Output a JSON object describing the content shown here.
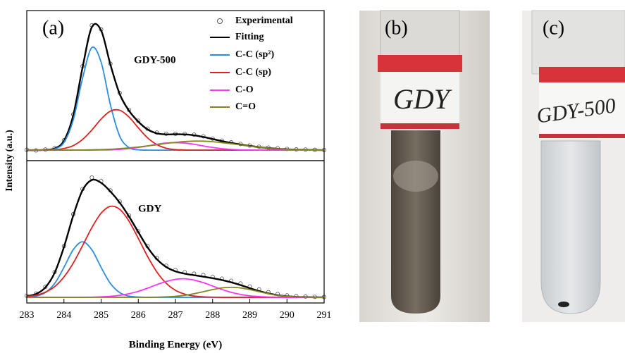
{
  "chart_data": [
    {
      "type": "line",
      "title": "(a)",
      "annotation": "GDY-500",
      "ylabel": "Intensity (a.u.)",
      "legend": "upper right",
      "x": [
        283,
        283.25,
        283.5,
        283.75,
        284,
        284.25,
        284.5,
        284.75,
        285,
        285.25,
        285.5,
        285.75,
        286,
        286.25,
        286.5,
        286.75,
        287,
        287.25,
        287.5,
        287.75,
        288,
        288.25,
        288.5,
        288.75,
        289,
        289.25,
        289.5,
        289.75,
        290,
        290.25,
        290.5,
        290.75,
        291
      ],
      "xlim": [
        283,
        291
      ],
      "ylim": [
        0,
        100
      ],
      "series": [
        {
          "name": "Experimental",
          "style": "markers",
          "color": "#555555",
          "values": [
            7.3,
            6.8,
            7.4,
            8.4,
            13.6,
            30.8,
            62.9,
            90.2,
            87.5,
            64.6,
            45.1,
            33.8,
            26.6,
            21.3,
            18.7,
            17.9,
            17.9,
            17.8,
            17.3,
            16.2,
            14.7,
            13.3,
            12.2,
            11.1,
            10.1,
            9.3,
            8.7,
            8.2,
            7.8,
            7.5,
            7.4,
            7.2,
            7.1
          ]
        },
        {
          "name": "Fitting",
          "style": "line",
          "color": "#000000",
          "values": [
            7,
            7,
            7.2,
            8.1,
            13.2,
            30.2,
            62,
            88.9,
            86.8,
            64,
            44.4,
            33.3,
            26,
            20.8,
            18.2,
            17.5,
            17.6,
            17.5,
            16.9,
            15.8,
            14.4,
            13,
            11.8,
            10.7,
            9.8,
            9,
            8.4,
            7.9,
            7.6,
            7.3,
            7.2,
            7.1,
            7
          ]
        },
        {
          "name": "C-C (sp²)",
          "style": "line",
          "color": "#2b8ce0",
          "values": [
            7,
            7,
            7.1,
            7.8,
            12.1,
            27.1,
            54.8,
            75.3,
            65.6,
            37.2,
            16.3,
            8.7,
            7.2,
            7,
            7,
            7,
            7,
            7,
            7,
            7,
            7,
            7,
            7,
            7,
            7,
            7,
            7,
            7,
            7,
            7,
            7,
            7,
            7
          ]
        },
        {
          "name": "C-C (sp)",
          "style": "line",
          "color": "#e02020",
          "values": [
            7,
            7,
            7.1,
            7.3,
            8.1,
            10,
            14.1,
            20.4,
            27.7,
            33,
            33.6,
            29.1,
            21.9,
            15.2,
            10.7,
            8.3,
            7.4,
            7.1,
            7,
            7,
            7,
            7,
            7,
            7,
            7,
            7,
            7,
            7,
            7,
            7,
            7,
            7,
            7
          ]
        },
        {
          "name": "C-O",
          "style": "line",
          "color": "#ff33ff",
          "values": [
            7,
            7,
            7,
            7,
            7,
            7,
            7,
            7,
            7.1,
            7.2,
            7.5,
            8,
            8.8,
            9.8,
            10.9,
            11.7,
            12,
            11.7,
            10.9,
            9.8,
            8.8,
            8,
            7.5,
            7.2,
            7.1,
            7,
            7,
            7,
            7,
            7,
            7,
            7,
            7
          ]
        },
        {
          "name": "C=O",
          "style": "line",
          "color": "#858520",
          "values": [
            7,
            7,
            7,
            7,
            7,
            7.1,
            7.1,
            7.2,
            7.4,
            7.6,
            8,
            8.5,
            9.1,
            9.8,
            10.6,
            11.5,
            12.2,
            12.7,
            13,
            13,
            12.6,
            12,
            11.3,
            10.5,
            9.7,
            9,
            8.4,
            7.9,
            7.6,
            7.3,
            7.2,
            7.1,
            7
          ]
        }
      ]
    },
    {
      "type": "line",
      "annotation": "GDY",
      "xlabel": "Binding Energy (eV)",
      "x": [
        283,
        283.25,
        283.5,
        283.75,
        284,
        284.25,
        284.5,
        284.75,
        285,
        285.25,
        285.5,
        285.75,
        286,
        286.25,
        286.5,
        286.75,
        287,
        287.25,
        287.5,
        287.75,
        288,
        288.25,
        288.5,
        288.75,
        289,
        289.25,
        289.5,
        289.75,
        290,
        290.25,
        290.5,
        290.75,
        291
      ],
      "xlim": [
        283,
        291
      ],
      "xticks": [
        283,
        284,
        285,
        286,
        287,
        288,
        289,
        290,
        291
      ],
      "ylim": [
        0,
        100
      ],
      "series": [
        {
          "style": "markers",
          "color": "#555555",
          "values": [
            5.1,
            6.6,
            11.3,
            21.8,
            39.9,
            62.3,
            80.1,
            88.1,
            85.6,
            79.1,
            71.2,
            61.4,
            50.4,
            39.9,
            31.6,
            26.2,
            23.1,
            21.6,
            20.6,
            19.6,
            18.4,
            17.1,
            15.6,
            13.7,
            11.6,
            9.5,
            7.6,
            6.3,
            5.3,
            4.8,
            4.5,
            4.3,
            4.2
          ]
        },
        {
          "style": "line",
          "color": "#000000",
          "values": [
            4.8,
            6.3,
            10.9,
            21.2,
            39.3,
            61.4,
            79.2,
            86.4,
            84.4,
            78.3,
            70.5,
            60.8,
            49.8,
            39.1,
            30.8,
            25.3,
            22.2,
            20.6,
            19.5,
            18.5,
            17.4,
            16.1,
            14.5,
            12.6,
            10.4,
            8.4,
            6.7,
            5.5,
            4.7,
            4.3,
            4.1,
            4,
            4
          ]
        },
        {
          "style": "line",
          "color": "#2b8ce0",
          "values": [
            4.2,
            4.8,
            7.3,
            13.7,
            25,
            37.4,
            43,
            37.4,
            25,
            13.7,
            7.3,
            4.8,
            4.2,
            4,
            4,
            4,
            4,
            4,
            4,
            4,
            4,
            4,
            4,
            4,
            4,
            4,
            4,
            4,
            4,
            4,
            4,
            4,
            4
          ]
        },
        {
          "style": "line",
          "color": "#e02020",
          "values": [
            4.6,
            5.5,
            7.6,
            11.5,
            18.3,
            28,
            40.2,
            52.9,
            63.1,
            67.9,
            65.8,
            57.5,
            45.4,
            32.7,
            21.8,
            13.9,
            8.9,
            6.2,
            4.9,
            4.3,
            4.1,
            4,
            4,
            4,
            4,
            4,
            4,
            4,
            4,
            4,
            4,
            4,
            4
          ]
        },
        {
          "style": "line",
          "color": "#ff33ff",
          "values": [
            4,
            4,
            4,
            4,
            4,
            4,
            4,
            4.1,
            4.3,
            4.7,
            5.4,
            6.5,
            8.2,
            10.4,
            12.9,
            15.1,
            16.6,
            17,
            16.1,
            14.3,
            11.9,
            9.5,
            7.5,
            6,
            5,
            4.5,
            4.2,
            4.1,
            4,
            4,
            4,
            4,
            4
          ]
        },
        {
          "style": "line",
          "color": "#858520",
          "values": [
            4,
            4,
            4,
            4,
            4,
            4,
            4,
            4,
            4,
            4,
            4,
            4,
            4,
            4,
            4.1,
            4.3,
            4.7,
            5.4,
            6.5,
            7.9,
            9.4,
            10.6,
            11,
            10.6,
            9.4,
            7.9,
            6.5,
            5.4,
            4.7,
            4.3,
            4.1,
            4,
            4
          ]
        }
      ]
    }
  ],
  "photos": [
    {
      "label": "(b)",
      "text": "GDY"
    },
    {
      "label": "(c)",
      "text": "GDY-500"
    }
  ]
}
